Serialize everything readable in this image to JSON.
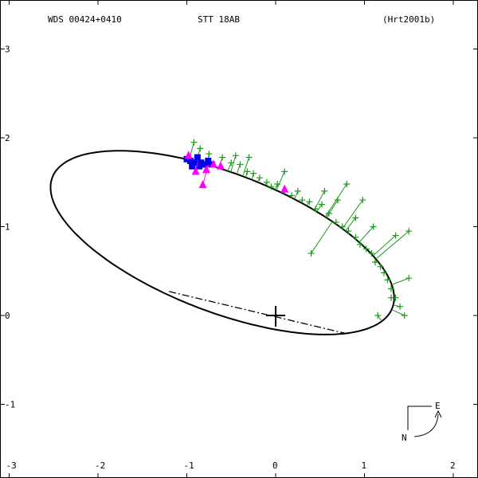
{
  "header": {
    "wds_id": "WDS 00424+0410",
    "pair_name": "STT  18AB",
    "reference": "(Hrt2001b)"
  },
  "compass": {
    "north_label": "N",
    "east_label": "E"
  },
  "colors": {
    "frame": "#000000",
    "orbit": "#000000",
    "micrometer": "#1a9a1a",
    "interferometry": "#0000ee",
    "other": "#ff00ff"
  },
  "chart_data": {
    "type": "scatter",
    "title": "STT  18AB",
    "xlabel": "",
    "ylabel": "",
    "xlim": [
      -3,
      2.2
    ],
    "ylim": [
      -1.6,
      3.4
    ],
    "x_ticks": [
      -3,
      -2,
      -1,
      0,
      1,
      2
    ],
    "x_tick_labels": [
      "-3",
      "-2",
      "-1",
      "0",
      "1",
      "2"
    ],
    "y_ticks": [
      -1,
      0,
      1,
      2,
      3
    ],
    "y_tick_labels": [
      "-1",
      "0",
      "1",
      "2",
      "3"
    ],
    "grid": false,
    "primary_star": [
      0,
      0
    ],
    "orbit": {
      "center": [
        -0.6,
        0.82
      ],
      "semi_major": 2.05,
      "semi_minor": 0.78,
      "tilt_deg": -21
    },
    "line_of_nodes": [
      [
        -1.2,
        0.27
      ],
      [
        0.78,
        -0.2
      ]
    ],
    "series": [
      {
        "marker": "plus",
        "points": [
          [
            -0.92,
            1.95
          ],
          [
            -0.85,
            1.88
          ],
          [
            -0.75,
            1.82
          ],
          [
            -0.6,
            1.78
          ],
          [
            -0.5,
            1.72
          ],
          [
            -0.45,
            1.8
          ],
          [
            -0.4,
            1.7
          ],
          [
            -0.32,
            1.62
          ],
          [
            -0.25,
            1.6
          ],
          [
            -0.18,
            1.55
          ],
          [
            -0.1,
            1.5
          ],
          [
            -0.05,
            1.45
          ],
          [
            0.02,
            1.48
          ],
          [
            0.1,
            1.4
          ],
          [
            0.18,
            1.35
          ],
          [
            0.25,
            1.4
          ],
          [
            0.3,
            1.3
          ],
          [
            0.38,
            1.28
          ],
          [
            0.45,
            1.2
          ],
          [
            0.52,
            1.25
          ],
          [
            0.6,
            1.15
          ],
          [
            0.68,
            1.05
          ],
          [
            0.75,
            1.0
          ],
          [
            0.82,
            0.95
          ],
          [
            0.9,
            0.88
          ],
          [
            0.95,
            0.8
          ],
          [
            1.02,
            0.75
          ],
          [
            1.08,
            0.7
          ],
          [
            1.12,
            0.6
          ],
          [
            1.18,
            0.55
          ],
          [
            1.22,
            0.48
          ],
          [
            1.26,
            0.4
          ],
          [
            1.3,
            0.3
          ],
          [
            1.35,
            0.2
          ],
          [
            1.4,
            0.1
          ],
          [
            1.45,
            0.0
          ],
          [
            1.3,
            0.2
          ],
          [
            1.15,
            0.0
          ],
          [
            0.4,
            0.7
          ],
          [
            0.7,
            1.3
          ],
          [
            0.9,
            1.1
          ],
          [
            1.1,
            1.0
          ],
          [
            1.35,
            0.9
          ],
          [
            1.5,
            0.95
          ],
          [
            1.5,
            0.42
          ],
          [
            0.1,
            1.62
          ],
          [
            -0.3,
            1.78
          ],
          [
            0.55,
            1.4
          ],
          [
            0.8,
            1.48
          ],
          [
            0.98,
            1.3
          ]
        ]
      },
      {
        "marker": "square",
        "points": [
          [
            -1.0,
            1.76
          ],
          [
            -0.96,
            1.74
          ],
          [
            -0.92,
            1.72
          ],
          [
            -0.88,
            1.78
          ],
          [
            -0.84,
            1.72
          ],
          [
            -0.8,
            1.7
          ],
          [
            -0.76,
            1.74
          ],
          [
            -0.72,
            1.7
          ],
          [
            -0.94,
            1.68
          ],
          [
            -0.86,
            1.68
          ]
        ]
      },
      {
        "marker": "triangle",
        "points": [
          [
            -0.98,
            1.8
          ],
          [
            -0.9,
            1.62
          ],
          [
            -0.82,
            1.47
          ],
          [
            -0.78,
            1.64
          ],
          [
            -0.7,
            1.7
          ],
          [
            -0.62,
            1.68
          ],
          [
            0.1,
            1.42
          ]
        ]
      }
    ]
  }
}
